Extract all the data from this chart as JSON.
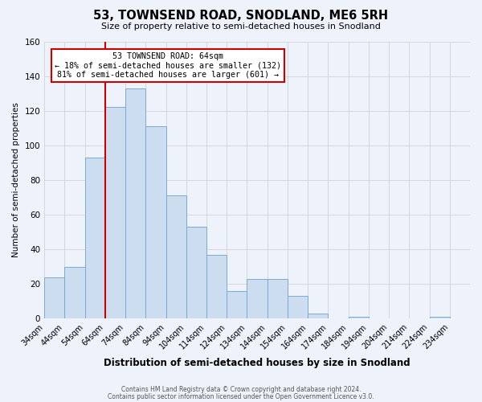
{
  "title": "53, TOWNSEND ROAD, SNODLAND, ME6 5RH",
  "subtitle": "Size of property relative to semi-detached houses in Snodland",
  "xlabel": "Distribution of semi-detached houses by size in Snodland",
  "ylabel": "Number of semi-detached properties",
  "bin_labels": [
    "34sqm",
    "44sqm",
    "54sqm",
    "64sqm",
    "74sqm",
    "84sqm",
    "94sqm",
    "104sqm",
    "114sqm",
    "124sqm",
    "134sqm",
    "144sqm",
    "154sqm",
    "164sqm",
    "174sqm",
    "184sqm",
    "194sqm",
    "204sqm",
    "214sqm",
    "224sqm",
    "234sqm"
  ],
  "bin_starts": [
    34,
    44,
    54,
    64,
    74,
    84,
    94,
    104,
    114,
    124,
    134,
    144,
    154,
    164,
    174,
    184,
    194,
    204,
    214,
    224,
    234
  ],
  "bin_width": 10,
  "counts": [
    24,
    30,
    93,
    122,
    133,
    111,
    71,
    53,
    37,
    16,
    23,
    23,
    13,
    3,
    0,
    1,
    0,
    0,
    0,
    1,
    0
  ],
  "bar_color": "#cdddf0",
  "bar_edge_color": "#7aaad0",
  "red_line_x": 64,
  "annotation_title": "53 TOWNSEND ROAD: 64sqm",
  "annotation_line1": "← 18% of semi-detached houses are smaller (132)",
  "annotation_line2": "81% of semi-detached houses are larger (601) →",
  "annotation_box_color": "#ffffff",
  "annotation_box_edge": "#cc0000",
  "red_line_color": "#cc0000",
  "ylim": [
    0,
    160
  ],
  "yticks": [
    0,
    20,
    40,
    60,
    80,
    100,
    120,
    140,
    160
  ],
  "grid_color": "#cccccc",
  "background_color": "#eef2fb",
  "footer_line1": "Contains HM Land Registry data © Crown copyright and database right 2024.",
  "footer_line2": "Contains public sector information licensed under the Open Government Licence v3.0."
}
